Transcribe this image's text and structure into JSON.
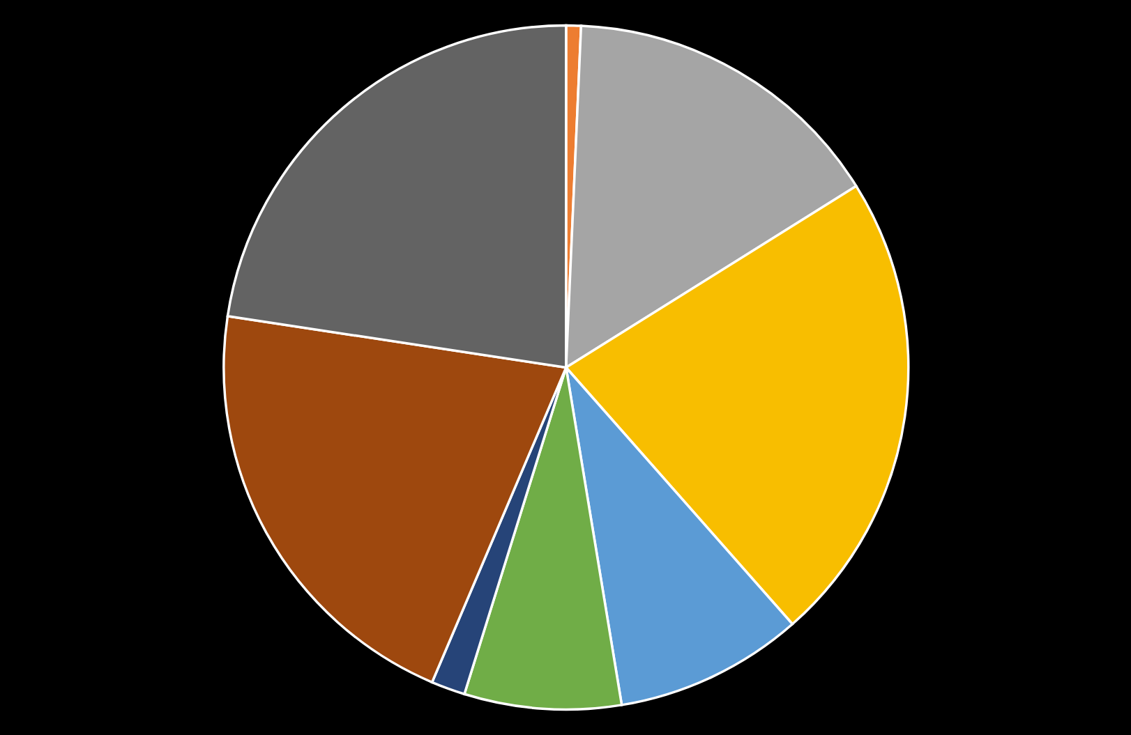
{
  "chart_data": {
    "type": "pie",
    "categories": [
      null,
      null,
      null,
      null,
      null,
      null,
      null,
      null
    ],
    "values": [
      0.7,
      15.4,
      22.4,
      8.9,
      7.4,
      1.6,
      21.0,
      22.6
    ],
    "colors": [
      "#ed7d31",
      "#a5a5a5",
      "#f8be00",
      "#5b9bd5",
      "#70ad47",
      "#264478",
      "#9e480e",
      "#636363"
    ]
  }
}
